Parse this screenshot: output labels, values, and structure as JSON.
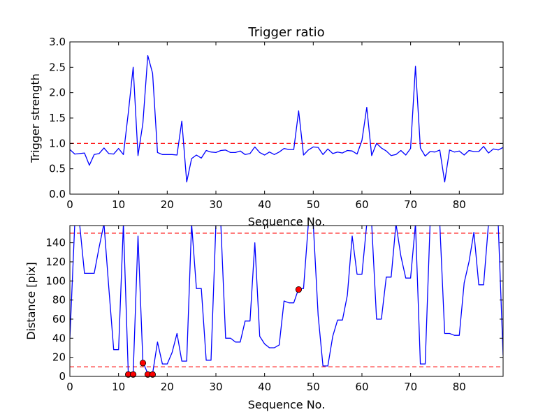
{
  "chart_data": [
    {
      "type": "line",
      "title": "Trigger ratio",
      "xlabel": "Sequence No.",
      "ylabel": "Trigger strength",
      "xlim": [
        0,
        89
      ],
      "ylim": [
        0,
        3.0
      ],
      "xticks": [
        0,
        10,
        20,
        30,
        40,
        50,
        60,
        70,
        80
      ],
      "yticks": [
        0.0,
        0.5,
        1.0,
        1.5,
        2.0,
        2.5,
        3.0
      ],
      "ytick_labels": [
        "0.0",
        "0.5",
        "1.0",
        "1.5",
        "2.0",
        "2.5",
        "3.0"
      ],
      "grid": false,
      "series": [
        {
          "color": "#0000ff",
          "x": [
            0,
            1,
            2,
            3,
            4,
            5,
            6,
            7,
            8,
            9,
            10,
            11,
            12,
            13,
            14,
            15,
            16,
            17,
            18,
            19,
            20,
            21,
            22,
            23,
            24,
            25,
            26,
            27,
            28,
            29,
            30,
            31,
            32,
            33,
            34,
            35,
            36,
            37,
            38,
            39,
            40,
            41,
            42,
            43,
            44,
            45,
            46,
            47,
            48,
            49,
            50,
            51,
            52,
            53,
            54,
            55,
            56,
            57,
            58,
            59,
            60,
            61,
            62,
            63,
            64,
            65,
            66,
            67,
            68,
            69,
            70,
            71,
            72,
            73,
            74,
            75,
            76,
            77,
            78,
            79,
            80,
            81,
            82,
            83,
            84,
            85,
            86,
            87,
            88,
            89
          ],
          "y": [
            0.88,
            0.79,
            0.8,
            0.81,
            0.57,
            0.78,
            0.8,
            0.91,
            0.8,
            0.79,
            0.9,
            0.78,
            1.6,
            2.5,
            0.76,
            1.4,
            2.73,
            2.38,
            0.82,
            0.78,
            0.78,
            0.78,
            0.77,
            1.44,
            0.24,
            0.7,
            0.77,
            0.71,
            0.86,
            0.83,
            0.82,
            0.86,
            0.87,
            0.82,
            0.82,
            0.85,
            0.78,
            0.8,
            0.93,
            0.82,
            0.77,
            0.83,
            0.78,
            0.83,
            0.9,
            0.88,
            0.88,
            1.64,
            0.77,
            0.87,
            0.93,
            0.92,
            0.78,
            0.89,
            0.8,
            0.83,
            0.81,
            0.86,
            0.85,
            0.79,
            1.06,
            1.71,
            0.76,
            1.0,
            0.91,
            0.85,
            0.76,
            0.78,
            0.86,
            0.77,
            0.9,
            2.52,
            0.91,
            0.75,
            0.84,
            0.83,
            0.87,
            0.24,
            0.87,
            0.83,
            0.85,
            0.77,
            0.86,
            0.84,
            0.84,
            0.94,
            0.81,
            0.89,
            0.87,
            0.92
          ]
        }
      ],
      "reference_lines": [
        {
          "y": 1.0,
          "color": "#ff0000",
          "style": "dashed"
        }
      ]
    },
    {
      "type": "line",
      "title": "",
      "xlabel": "Sequence No.",
      "ylabel": "Distance [pix]",
      "xlim": [
        0,
        89
      ],
      "ylim": [
        0,
        158
      ],
      "xticks": [
        0,
        10,
        20,
        30,
        40,
        50,
        60,
        70,
        80
      ],
      "yticks": [
        0,
        20,
        40,
        60,
        80,
        100,
        120,
        140
      ],
      "ytick_labels": [
        "0",
        "20",
        "40",
        "60",
        "80",
        "100",
        "120",
        "140"
      ],
      "grid": false,
      "series": [
        {
          "color": "#0000ff",
          "x": [
            0,
            1,
            2,
            3,
            4,
            5,
            6,
            7,
            8,
            9,
            10,
            11,
            12,
            13,
            14,
            15,
            16,
            17,
            18,
            19,
            20,
            21,
            22,
            23,
            24,
            25,
            26,
            27,
            28,
            29,
            30,
            31,
            32,
            33,
            34,
            35,
            36,
            37,
            38,
            39,
            40,
            41,
            42,
            43,
            44,
            45,
            46,
            47,
            48,
            49,
            50,
            51,
            52,
            53,
            54,
            55,
            56,
            57,
            58,
            59,
            60,
            61,
            62,
            63,
            64,
            65,
            66,
            67,
            68,
            69,
            70,
            71,
            72,
            73,
            74,
            75,
            76,
            77,
            78,
            79,
            80,
            81,
            82,
            83,
            84,
            85,
            86,
            87,
            88,
            89
          ],
          "y": [
            40,
            160,
            160,
            108,
            108,
            108,
            135,
            160,
            93,
            28,
            28,
            160,
            3,
            3,
            147,
            15,
            3,
            3,
            36,
            13,
            13,
            25,
            45,
            16,
            16,
            160,
            92,
            92,
            17,
            17,
            160,
            160,
            40,
            40,
            36,
            36,
            58,
            58,
            140,
            42,
            34,
            30,
            30,
            33,
            79,
            77,
            77,
            92,
            92,
            160,
            160,
            64,
            11,
            11,
            42,
            59,
            59,
            85,
            147,
            107,
            107,
            160,
            160,
            60,
            60,
            104,
            104,
            160,
            126,
            103,
            103,
            160,
            13,
            13,
            160,
            160,
            160,
            45,
            45,
            43,
            43,
            98,
            120,
            151,
            96,
            96,
            160,
            160,
            160,
            22
          ],
          "ylim_clip": true
        },
        {
          "name": "",
          "type": "scatter",
          "color": "#ff0000",
          "x": [
            12,
            13,
            15,
            16,
            17,
            47
          ],
          "y": [
            2,
            2,
            14,
            2,
            2,
            91
          ]
        }
      ],
      "reference_lines": [
        {
          "y": 150,
          "color": "#ff0000",
          "style": "dashed"
        },
        {
          "y": 10,
          "color": "#ff0000",
          "style": "dashed"
        }
      ]
    }
  ]
}
